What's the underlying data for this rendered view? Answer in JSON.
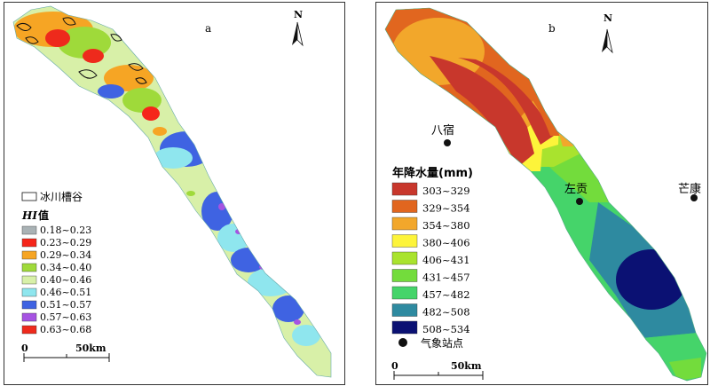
{
  "panel_a": {
    "label": "a",
    "north": "N",
    "glacier_legend": "冰川槽谷",
    "hi_title_italic": "HI",
    "hi_title_suffix": "值",
    "legend": [
      {
        "range": "0.18~0.23",
        "color": "#a9b2b5"
      },
      {
        "range": "0.23~0.29",
        "color": "#f5251a"
      },
      {
        "range": "0.29~0.34",
        "color": "#f6a524"
      },
      {
        "range": "0.34~0.40",
        "color": "#9fda3a"
      },
      {
        "range": "0.40~0.46",
        "color": "#d8f0a8"
      },
      {
        "range": "0.46~0.51",
        "color": "#8fe6ee"
      },
      {
        "range": "0.51~0.57",
        "color": "#3f63e2"
      },
      {
        "range": "0.57~0.63",
        "color": "#a653e2"
      },
      {
        "range": "0.63~0.68",
        "color": "#ee2a1c"
      }
    ],
    "scale_zero": "0",
    "scale_end": "50km"
  },
  "panel_b": {
    "label": "b",
    "north": "N",
    "station_1": "八宿",
    "station_2": "左贡",
    "station_3": "芒康",
    "legend_title": "年降水量(mm)",
    "legend": [
      {
        "range": "303~329",
        "color": "#c8372c"
      },
      {
        "range": "329~354",
        "color": "#e1661f"
      },
      {
        "range": "354~380",
        "color": "#f2a72b"
      },
      {
        "range": "380~406",
        "color": "#fdf43a"
      },
      {
        "range": "406~431",
        "color": "#a9e32e"
      },
      {
        "range": "431~457",
        "color": "#73dc3c"
      },
      {
        "range": "457~482",
        "color": "#45d46a"
      },
      {
        "range": "482~508",
        "color": "#2e8aa0"
      },
      {
        "range": "508~534",
        "color": "#0b1173"
      }
    ],
    "station_legend": "气象站点",
    "scale_zero": "0",
    "scale_end": "50km"
  }
}
